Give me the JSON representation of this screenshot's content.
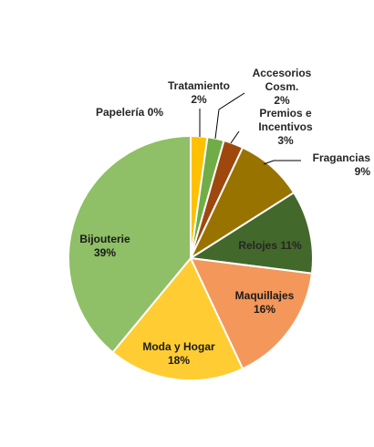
{
  "chart_data": {
    "type": "pie",
    "start_angle_deg": 0,
    "direction": "clockwise",
    "slices": [
      {
        "name_lines": [
          "Tratamiento"
        ],
        "value_label": "2%",
        "value": 2.2,
        "color": "#FFC000",
        "label_color": "#262626"
      },
      {
        "name_lines": [
          "Accesorios",
          "Cosm."
        ],
        "value_label": "2%",
        "value": 2.2,
        "color": "#70AD47",
        "label_color": "#262626"
      },
      {
        "name_lines": [
          "Premios e",
          "Incentivos"
        ],
        "value_label": "3%",
        "value": 2.6,
        "color": "#9E480E",
        "label_color": "#262626"
      },
      {
        "name_lines": [
          "Fragancias"
        ],
        "value_label": "9%",
        "value": 9,
        "color": "#997300",
        "label_color": "#262626"
      },
      {
        "name_lines": [
          "Relojes"
        ],
        "value_label": "11%",
        "value": 11,
        "color": "#43682B",
        "label_color": "#262626"
      },
      {
        "name_lines": [
          "Maquillajes"
        ],
        "value_label": "16%",
        "value": 16,
        "color": "#F4975A",
        "label_color": "#1a1a1a"
      },
      {
        "name_lines": [
          "Moda y Hogar"
        ],
        "value_label": "18%",
        "value": 18,
        "color": "#FFCD33",
        "label_color": "#1a1a1a"
      },
      {
        "name_lines": [
          "Bijouterie"
        ],
        "value_label": "39%",
        "value": 39,
        "color": "#8FBF66",
        "label_color": "#1a1a1a"
      },
      {
        "name_lines": [
          "Papelería"
        ],
        "value_label": "0%",
        "value": 0,
        "color": "#5B9BD5",
        "label_color": "#262626"
      }
    ]
  }
}
